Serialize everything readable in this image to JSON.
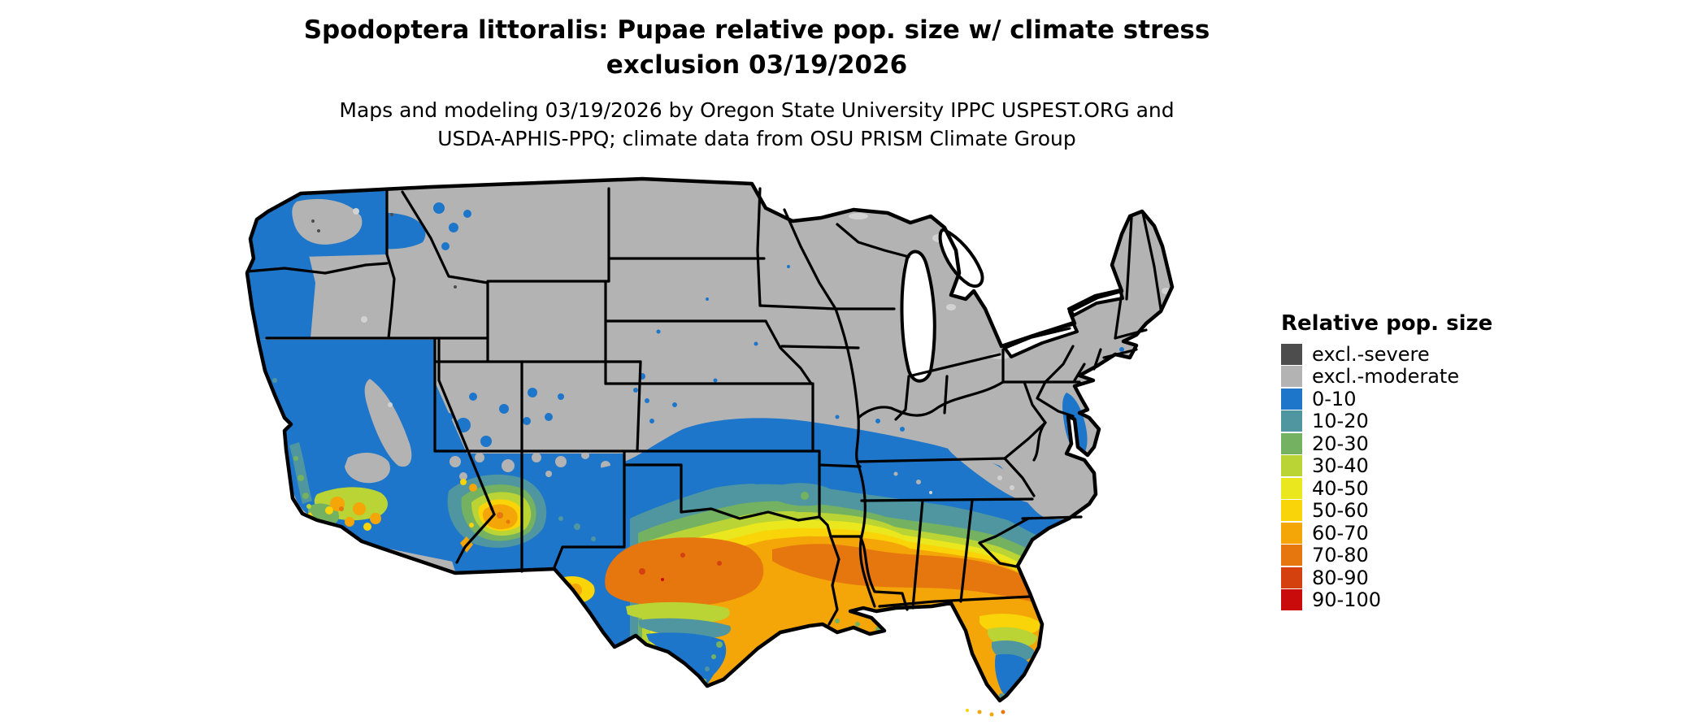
{
  "title": {
    "line1": "Spodoptera littoralis: Pupae relative pop. size w/ climate stress",
    "line2": "exclusion 03/19/2026"
  },
  "subtitle": {
    "line1": "Maps and modeling 03/19/2026 by Oregon State University IPPC USPEST.ORG and",
    "line2": "USDA-APHIS-PPQ; climate data from OSU PRISM Climate Group"
  },
  "legend": {
    "title": "Relative pop. size",
    "entries": [
      {
        "label": "excl.-severe",
        "color": "#4d4d4d"
      },
      {
        "label": "excl.-moderate",
        "color": "#b3b3b3"
      },
      {
        "label": "0-10",
        "color": "#1d76c9"
      },
      {
        "label": "10-20",
        "color": "#4f96a1"
      },
      {
        "label": "20-30",
        "color": "#74b160"
      },
      {
        "label": "30-40",
        "color": "#b9d434"
      },
      {
        "label": "40-50",
        "color": "#eae71f"
      },
      {
        "label": "50-60",
        "color": "#f8d408"
      },
      {
        "label": "60-70",
        "color": "#f4a508"
      },
      {
        "label": "70-80",
        "color": "#e6770e"
      },
      {
        "label": "80-90",
        "color": "#d5410e"
      },
      {
        "label": "90-100",
        "color": "#c90b0b"
      }
    ]
  },
  "palette": {
    "severe": "#4d4d4d",
    "moderate": "#b3b3b3",
    "lightgray": "#d2d2d2",
    "blue": "#1d76c9",
    "teal": "#4f96a1",
    "green": "#74b160",
    "ygreen": "#b9d434",
    "yellow": "#eae71f",
    "gold": "#f8d408",
    "orange": "#f4a508",
    "dorange": "#e6770e",
    "redorange": "#d5410e",
    "red": "#c90b0b",
    "border": "#000000",
    "water": "#ffffff"
  },
  "map_data": {
    "type": "choropleth-raster-map",
    "extent": "contiguous United States with state boundaries",
    "classes": [
      "excl.-severe",
      "excl.-moderate",
      "0-10",
      "10-20",
      "20-30",
      "30-40",
      "40-50",
      "50-60",
      "60-70",
      "70-80",
      "80-90",
      "90-100"
    ],
    "regions": [
      {
        "area": "northern states (Plains, Midwest, Northeast, interior West)",
        "dominant_class": "excl.-moderate"
      },
      {
        "area": "Pacific Northwest coast and western valleys",
        "dominant_class": "0-10"
      },
      {
        "area": "mid-latitude band (Kentucky, Tennessee, Virginia, southern Kansas, Oklahoma)",
        "dominant_class": "0-10"
      },
      {
        "area": "Carolinas into northern Gulf states",
        "dominant_class": "10-20 to 40-50 gradient southward"
      },
      {
        "area": "central Texas and Gulf Coast states inland band",
        "dominant_class": "60-70 to 70-80"
      },
      {
        "area": "southern Texas toward Rio Grande",
        "dominant_class": "0-10 to 20-30 (reversal)"
      },
      {
        "area": "northern Florida",
        "dominant_class": "60-70"
      },
      {
        "area": "southern Florida peninsula",
        "dominant_class": "0-10 to 10-20 (reversal), Keys 60-80"
      },
      {
        "area": "southern Arizona / southern California coast",
        "dominant_class": "50-60 to 70-80 hotspots"
      }
    ]
  }
}
